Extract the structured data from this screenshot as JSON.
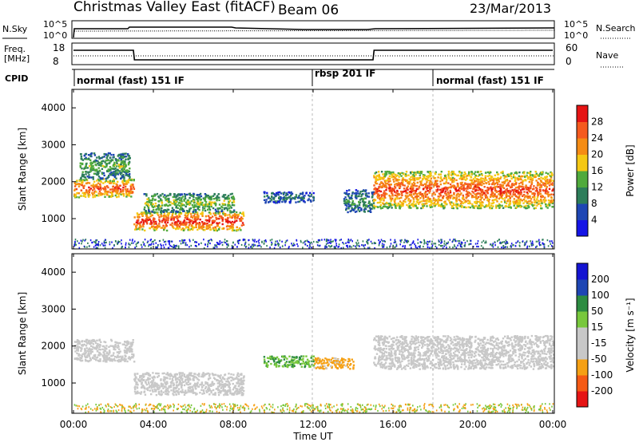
{
  "header": {
    "title": "Christmas Valley East (fitACF)",
    "beam": "Beam 06",
    "date": "23/Mar/2013"
  },
  "nsky_panel": {
    "left_label": "N.Sky",
    "right_label": "N.Search",
    "left_ticks": [
      "10^5",
      "10^0"
    ],
    "right_ticks": [
      "10^5",
      "10^0"
    ]
  },
  "freq_panel": {
    "left_label_line1": "Freq.",
    "left_label_line2": "[MHz]",
    "right_label": "Nave",
    "left_ticks": [
      "18",
      "8"
    ],
    "right_ticks": [
      "60",
      "0"
    ]
  },
  "cpid_panel": {
    "label": "CPID",
    "modes": [
      {
        "text": "normal (fast) 151 IF",
        "start_hour": 0
      },
      {
        "text": "rbsp 201 IF",
        "start_hour": 12
      },
      {
        "text": "normal (fast) 151 IF",
        "start_hour": 18
      }
    ]
  },
  "time_axis": {
    "label": "Time UT",
    "ticks": [
      "00:00",
      "04:00",
      "08:00",
      "12:00",
      "16:00",
      "20:00",
      "00:00"
    ]
  },
  "power_panel": {
    "ylabel": "Slant Range [km]",
    "yticks": [
      "4000",
      "3000",
      "2000",
      "1000"
    ],
    "colorbar_label": "Power [dB]",
    "colorbar_ticks": [
      "28",
      "24",
      "20",
      "16",
      "12",
      "8",
      "4"
    ]
  },
  "velocity_panel": {
    "ylabel": "Slant Range [km]",
    "yticks": [
      "4000",
      "3000",
      "2000",
      "1000"
    ],
    "colorbar_label": "Velocity [m s⁻¹]",
    "colorbar_ticks": [
      "200",
      "100",
      "50",
      "15",
      "-15",
      "-50",
      "-100",
      "-200"
    ]
  },
  "colors": {
    "power_scale": [
      "#1414e6",
      "#1e46b4",
      "#2d7d5a",
      "#50aa3c",
      "#f5c814",
      "#f58c14",
      "#f55a1e",
      "#e61414"
    ],
    "velocity_scale": [
      "#e61414",
      "#f55a14",
      "#f5a014",
      "#c8c8c8",
      "#c8c8c8",
      "#78c83c",
      "#2d8c41",
      "#1e46b4",
      "#1414d2"
    ]
  },
  "chart_data": [
    {
      "type": "line",
      "name": "N.Sky / N.Search",
      "x_unit": "hours UT",
      "series": [
        {
          "x": [
            0,
            0.1,
            3,
            3.1,
            6,
            6.1,
            9,
            15,
            15.1,
            24
          ],
          "y_desc": "noise level near 10^0..10^5 (log)",
          "values": [
            0,
            3.2,
            3.3,
            3.6,
            3.5,
            3.2,
            3.3,
            3.3,
            3.3,
            3.4
          ]
        }
      ]
    },
    {
      "type": "line",
      "name": "Freq / Nave",
      "x_unit": "hours UT",
      "series": [
        {
          "x": [
            0,
            3,
            3.05,
            15,
            15.05,
            24
          ],
          "values": [
            16.5,
            16.5,
            10.5,
            10.5,
            16.5,
            16.5
          ]
        }
      ]
    },
    {
      "type": "heatmap",
      "name": "Power",
      "x_range": [
        0,
        24
      ],
      "y_range": [
        180,
        4500
      ],
      "value_range_dB": [
        0,
        30
      ],
      "regions": [
        {
          "t": [
            0,
            3
          ],
          "r": [
            1600,
            2100
          ],
          "power": 24
        },
        {
          "t": [
            0.3,
            2.8
          ],
          "r": [
            2100,
            2800
          ],
          "power": 12
        },
        {
          "t": [
            3,
            8.5
          ],
          "r": [
            700,
            1200
          ],
          "power": 26
        },
        {
          "t": [
            3.5,
            8
          ],
          "r": [
            1200,
            1700
          ],
          "power": 14
        },
        {
          "t": [
            9.5,
            12
          ],
          "r": [
            1450,
            1750
          ],
          "power": 8
        },
        {
          "t": [
            13.5,
            15
          ],
          "r": [
            1200,
            1800
          ],
          "power": 10
        },
        {
          "t": [
            15,
            24
          ],
          "r": [
            1300,
            2300
          ],
          "power": 24
        }
      ]
    },
    {
      "type": "heatmap",
      "name": "Velocity",
      "x_range": [
        0,
        24
      ],
      "y_range": [
        180,
        4500
      ],
      "value_range_ms": [
        -200,
        200
      ],
      "regions": [
        {
          "t": [
            0,
            3
          ],
          "r": [
            1600,
            2200
          ],
          "velocity": 0
        },
        {
          "t": [
            3,
            8.5
          ],
          "r": [
            700,
            1300
          ],
          "velocity": -20
        },
        {
          "t": [
            9.5,
            12
          ],
          "r": [
            1450,
            1750
          ],
          "velocity": 60
        },
        {
          "t": [
            12,
            14
          ],
          "r": [
            1400,
            1700
          ],
          "velocity": -80
        },
        {
          "t": [
            15,
            24
          ],
          "r": [
            1400,
            2300
          ],
          "velocity": 0
        }
      ]
    }
  ]
}
